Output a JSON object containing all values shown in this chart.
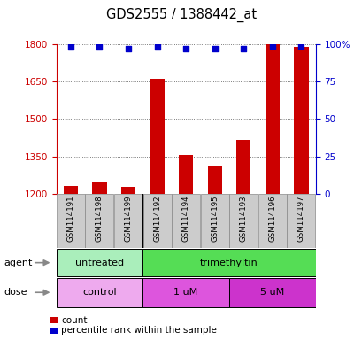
{
  "title": "GDS2555 / 1388442_at",
  "samples": [
    "GSM114191",
    "GSM114198",
    "GSM114199",
    "GSM114192",
    "GSM114194",
    "GSM114195",
    "GSM114193",
    "GSM114196",
    "GSM114197"
  ],
  "bar_values": [
    1230,
    1250,
    1228,
    1660,
    1355,
    1310,
    1415,
    1800,
    1790
  ],
  "percentile_values": [
    98,
    98,
    97,
    98,
    97,
    97,
    97,
    99,
    99
  ],
  "y_min": 1200,
  "y_max": 1800,
  "y_ticks": [
    1200,
    1350,
    1500,
    1650,
    1800
  ],
  "y_right_ticks": [
    0,
    25,
    50,
    75,
    100
  ],
  "bar_color": "#cc0000",
  "dot_color": "#0000cc",
  "bar_width": 0.5,
  "agent_groups": [
    {
      "label": "untreated",
      "start": 0,
      "end": 3,
      "color": "#aaeebb"
    },
    {
      "label": "trimethyltin",
      "start": 3,
      "end": 9,
      "color": "#55dd55"
    }
  ],
  "dose_groups": [
    {
      "label": "control",
      "start": 0,
      "end": 3,
      "color": "#eeaaee"
    },
    {
      "label": "1 uM",
      "start": 3,
      "end": 6,
      "color": "#dd55dd"
    },
    {
      "label": "5 uM",
      "start": 6,
      "end": 9,
      "color": "#cc33cc"
    }
  ],
  "legend_count_color": "#cc0000",
  "legend_dot_color": "#0000cc",
  "grid_color": "#555555",
  "tick_label_color_left": "#cc0000",
  "tick_label_color_right": "#0000cc",
  "label_area_color": "#cccccc",
  "label_area_edge": "#888888"
}
